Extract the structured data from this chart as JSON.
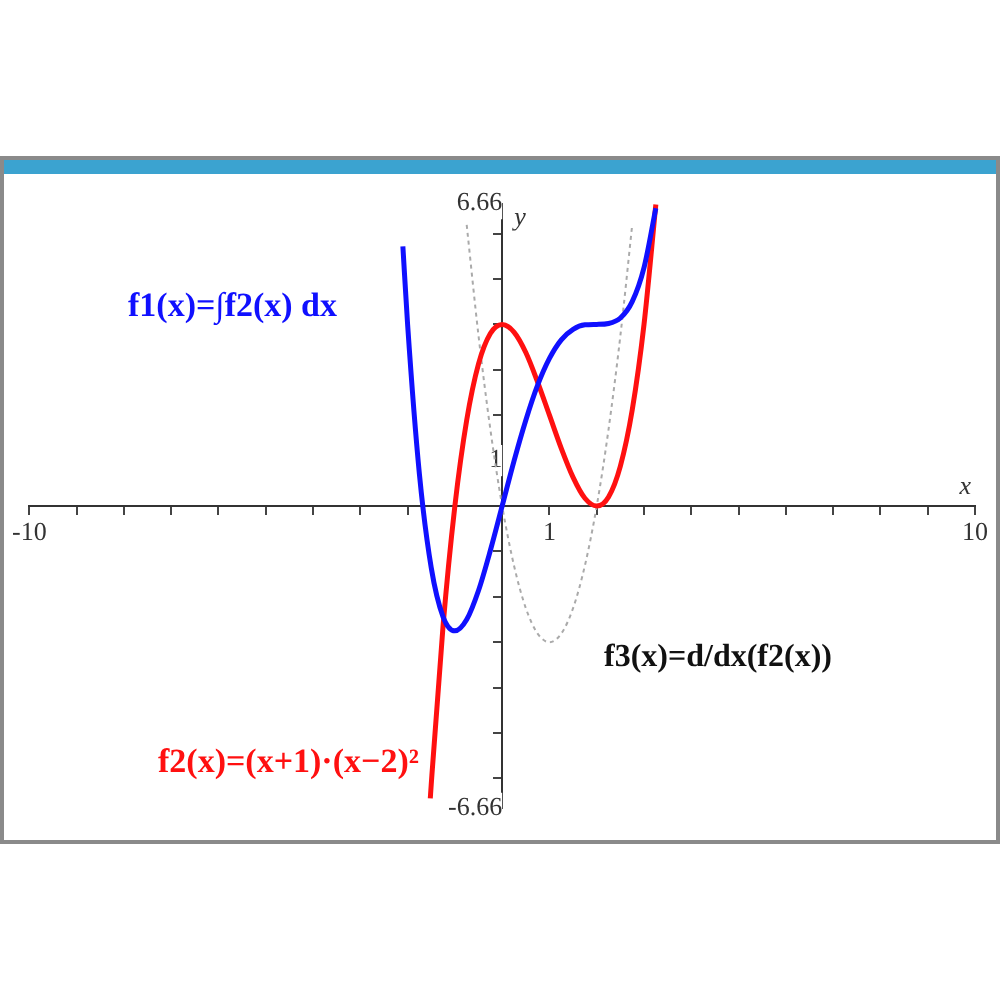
{
  "chart_data": {
    "type": "line",
    "xlabel": "x",
    "ylabel": "y",
    "xlim": [
      -10,
      10
    ],
    "ylim": [
      -6.66,
      6.66
    ],
    "xticks": [
      {
        "value": -10,
        "label": "-10"
      },
      {
        "value": -9,
        "label": null
      },
      {
        "value": -8,
        "label": null
      },
      {
        "value": -7,
        "label": null
      },
      {
        "value": -6,
        "label": null
      },
      {
        "value": -5,
        "label": null
      },
      {
        "value": -4,
        "label": null
      },
      {
        "value": -3,
        "label": null
      },
      {
        "value": -2,
        "label": null
      },
      {
        "value": -1,
        "label": null
      },
      {
        "value": 1,
        "label": "1"
      },
      {
        "value": 2,
        "label": null
      },
      {
        "value": 3,
        "label": null
      },
      {
        "value": 4,
        "label": null
      },
      {
        "value": 5,
        "label": null
      },
      {
        "value": 6,
        "label": null
      },
      {
        "value": 7,
        "label": null
      },
      {
        "value": 8,
        "label": null
      },
      {
        "value": 9,
        "label": null
      },
      {
        "value": 10,
        "label": "10"
      }
    ],
    "yticks": [
      {
        "value": -6.66,
        "label": "-6.66"
      },
      {
        "value": -6,
        "label": null
      },
      {
        "value": -5,
        "label": null
      },
      {
        "value": -4,
        "label": null
      },
      {
        "value": -3,
        "label": null
      },
      {
        "value": -2,
        "label": null
      },
      {
        "value": -1,
        "label": null
      },
      {
        "value": 1,
        "label": "1"
      },
      {
        "value": 2,
        "label": null
      },
      {
        "value": 3,
        "label": null
      },
      {
        "value": 4,
        "label": null
      },
      {
        "value": 5,
        "label": null
      },
      {
        "value": 6,
        "label": null
      },
      {
        "value": 6.66,
        "label": "6.66"
      }
    ],
    "grid": false,
    "legend": false,
    "marker": "none",
    "series": [
      {
        "name": "f1(x)=∫f2(x) dx",
        "color": "#1010ff",
        "line_style": "solid",
        "x": [
          -2.1,
          -2,
          -1.75,
          -1.5,
          -1.25,
          -1,
          -0.75,
          -0.5,
          -0.25,
          0,
          0.25,
          0.5,
          0.75,
          1,
          1.25,
          1.5,
          1.75,
          2,
          2.25,
          2.5,
          2.75,
          3,
          3.25
        ],
        "values": [
          5.72,
          4,
          0.7,
          -1.36,
          -2.44,
          -2.75,
          -2.5,
          -1.86,
          -0.98,
          0,
          0.99,
          1.89,
          2.66,
          3.25,
          3.66,
          3.89,
          3.99,
          4,
          4.02,
          4.14,
          4.5,
          5.25,
          6.56
        ]
      },
      {
        "name": "f2(x)=(x+1)·(x−2)²",
        "color": "#ff1010",
        "line_style": "solid",
        "x": [
          -1.52,
          -1.5,
          -1.25,
          -1,
          -0.75,
          -0.5,
          -0.25,
          0,
          0.25,
          0.5,
          0.75,
          1,
          1.25,
          1.5,
          1.75,
          2,
          2.25,
          2.5,
          2.75,
          3,
          3.25
        ],
        "values": [
          -6.44,
          -6.13,
          -2.64,
          0,
          1.89,
          3.13,
          3.8,
          4,
          3.83,
          3.38,
          2.73,
          2,
          1.27,
          0.63,
          0.17,
          0,
          0.2,
          0.88,
          2.11,
          4,
          6.64
        ]
      },
      {
        "name": "f3(x)=d/dx(f2(x))",
        "color": "#aaaaaa",
        "line_style": "dotted",
        "x": [
          -0.75,
          -0.5,
          -0.25,
          0,
          0.25,
          0.5,
          0.75,
          1,
          1.25,
          1.5,
          1.75,
          2,
          2.25,
          2.5,
          2.75
        ],
        "values": [
          6.19,
          3.75,
          1.69,
          0,
          -1.31,
          -2.25,
          -2.81,
          -3,
          -2.81,
          -2.25,
          -1.31,
          0,
          1.69,
          3.75,
          6.19
        ]
      }
    ]
  }
}
